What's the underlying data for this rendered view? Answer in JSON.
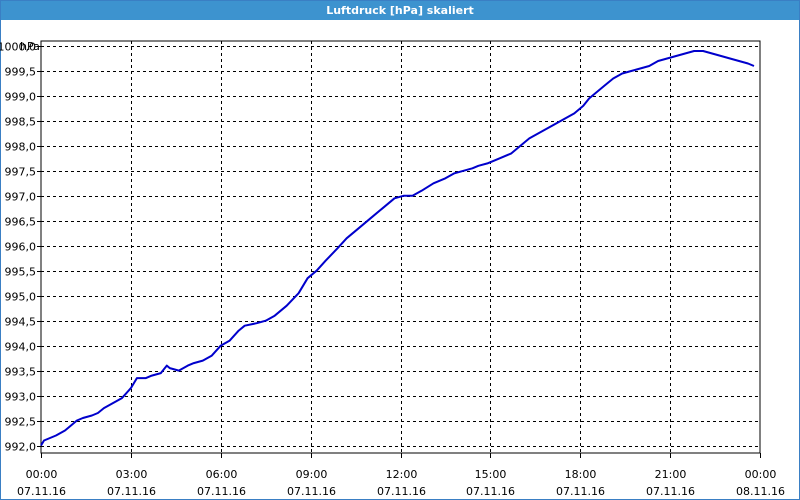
{
  "window": {
    "title": "Luftdruck [hPa] skaliert"
  },
  "chart_data": {
    "type": "line",
    "title": "Luftdruck [hPa] skaliert",
    "ylabel": "hPa",
    "xlabel": "",
    "ylim": [
      991.85,
      1000.1
    ],
    "xlim": [
      0,
      24
    ],
    "grid": true,
    "y_ticks": [
      992.0,
      992.5,
      993.0,
      993.5,
      994.0,
      994.5,
      995.0,
      995.5,
      996.0,
      996.5,
      997.0,
      997.5,
      998.0,
      998.5,
      999.0,
      999.5,
      1000.0
    ],
    "y_tick_labels": [
      "992,0",
      "992,5",
      "993,0",
      "993,5",
      "994,0",
      "994,5",
      "995,0",
      "995,5",
      "996,0",
      "996,5",
      "997,0",
      "997,5",
      "998,0",
      "998,5",
      "999,0",
      "999,5",
      "1000,0"
    ],
    "x_ticks": [
      {
        "hour": 0,
        "time": "00:00",
        "date": "07.11.16"
      },
      {
        "hour": 3,
        "time": "03:00",
        "date": "07.11.16"
      },
      {
        "hour": 6,
        "time": "06:00",
        "date": "07.11.16"
      },
      {
        "hour": 9,
        "time": "09:00",
        "date": "07.11.16"
      },
      {
        "hour": 12,
        "time": "12:00",
        "date": "07.11.16"
      },
      {
        "hour": 15,
        "time": "15:00",
        "date": "07.11.16"
      },
      {
        "hour": 18,
        "time": "18:00",
        "date": "07.11.16"
      },
      {
        "hour": 21,
        "time": "21:00",
        "date": "07.11.16"
      },
      {
        "hour": 24,
        "time": "00:00",
        "date": "08.11.16"
      }
    ],
    "series": [
      {
        "color": "#0000cc",
        "points": [
          [
            0.0,
            992.0
          ],
          [
            0.1,
            992.1
          ],
          [
            0.3,
            992.15
          ],
          [
            0.5,
            992.2
          ],
          [
            0.8,
            992.3
          ],
          [
            1.0,
            992.4
          ],
          [
            1.2,
            992.5
          ],
          [
            1.4,
            992.55
          ],
          [
            1.7,
            992.6
          ],
          [
            1.9,
            992.65
          ],
          [
            2.1,
            992.75
          ],
          [
            2.4,
            992.85
          ],
          [
            2.7,
            992.95
          ],
          [
            3.0,
            993.15
          ],
          [
            3.2,
            993.35
          ],
          [
            3.5,
            993.35
          ],
          [
            3.7,
            993.4
          ],
          [
            4.0,
            993.45
          ],
          [
            4.2,
            993.6
          ],
          [
            4.3,
            993.55
          ],
          [
            4.6,
            993.5
          ],
          [
            4.9,
            993.6
          ],
          [
            5.1,
            993.65
          ],
          [
            5.4,
            993.7
          ],
          [
            5.7,
            993.8
          ],
          [
            6.0,
            994.0
          ],
          [
            6.3,
            994.1
          ],
          [
            6.6,
            994.3
          ],
          [
            6.8,
            994.4
          ],
          [
            7.2,
            994.45
          ],
          [
            7.5,
            994.5
          ],
          [
            7.8,
            994.6
          ],
          [
            8.2,
            994.8
          ],
          [
            8.6,
            995.05
          ],
          [
            8.9,
            995.35
          ],
          [
            9.2,
            995.5
          ],
          [
            9.5,
            995.7
          ],
          [
            9.9,
            995.95
          ],
          [
            10.2,
            996.15
          ],
          [
            10.6,
            996.35
          ],
          [
            11.0,
            996.55
          ],
          [
            11.4,
            996.75
          ],
          [
            11.8,
            996.95
          ],
          [
            12.1,
            997.0
          ],
          [
            12.4,
            997.0
          ],
          [
            12.7,
            997.1
          ],
          [
            13.1,
            997.25
          ],
          [
            13.5,
            997.35
          ],
          [
            13.8,
            997.45
          ],
          [
            14.1,
            997.5
          ],
          [
            14.4,
            997.55
          ],
          [
            14.6,
            997.6
          ],
          [
            14.9,
            997.65
          ],
          [
            15.3,
            997.75
          ],
          [
            15.7,
            997.85
          ],
          [
            16.0,
            998.0
          ],
          [
            16.3,
            998.15
          ],
          [
            16.6,
            998.25
          ],
          [
            16.9,
            998.35
          ],
          [
            17.2,
            998.45
          ],
          [
            17.5,
            998.55
          ],
          [
            17.8,
            998.65
          ],
          [
            18.1,
            998.8
          ],
          [
            18.3,
            998.95
          ],
          [
            18.5,
            999.05
          ],
          [
            18.8,
            999.2
          ],
          [
            19.1,
            999.35
          ],
          [
            19.4,
            999.45
          ],
          [
            19.7,
            999.5
          ],
          [
            20.0,
            999.55
          ],
          [
            20.3,
            999.6
          ],
          [
            20.6,
            999.7
          ],
          [
            20.9,
            999.75
          ],
          [
            21.2,
            999.8
          ],
          [
            21.5,
            999.85
          ],
          [
            21.8,
            999.9
          ],
          [
            22.1,
            999.9
          ],
          [
            22.4,
            999.85
          ],
          [
            22.7,
            999.8
          ],
          [
            23.0,
            999.75
          ],
          [
            23.3,
            999.7
          ],
          [
            23.6,
            999.65
          ],
          [
            23.8,
            999.6
          ]
        ]
      }
    ]
  }
}
